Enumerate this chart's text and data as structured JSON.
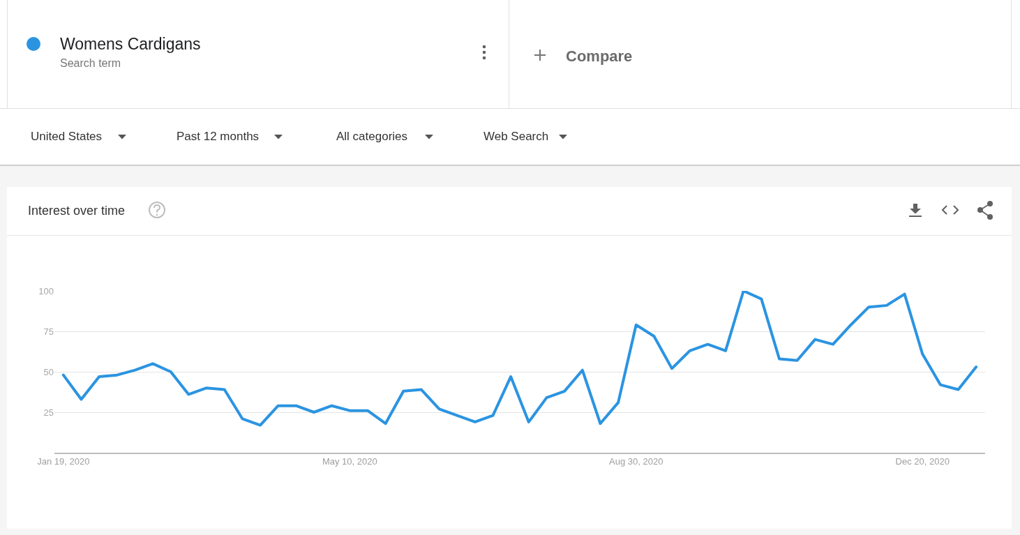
{
  "chart_data": {
    "type": "line",
    "title": "Interest over time",
    "annotations": [
      "Search term",
      "Compare",
      "United States",
      "Past 12 months",
      "All categories",
      "Web Search"
    ],
    "x": [
      "2020-01-19",
      "2020-01-26",
      "2020-02-02",
      "2020-02-09",
      "2020-02-16",
      "2020-02-23",
      "2020-03-01",
      "2020-03-08",
      "2020-03-15",
      "2020-03-22",
      "2020-03-29",
      "2020-04-05",
      "2020-04-12",
      "2020-04-19",
      "2020-04-26",
      "2020-05-03",
      "2020-05-10",
      "2020-05-17",
      "2020-05-24",
      "2020-05-31",
      "2020-06-07",
      "2020-06-14",
      "2020-06-21",
      "2020-06-28",
      "2020-07-05",
      "2020-07-12",
      "2020-07-19",
      "2020-07-26",
      "2020-08-02",
      "2020-08-09",
      "2020-08-16",
      "2020-08-23",
      "2020-08-30",
      "2020-09-06",
      "2020-09-13",
      "2020-09-20",
      "2020-09-27",
      "2020-10-04",
      "2020-10-11",
      "2020-10-18",
      "2020-10-25",
      "2020-11-01",
      "2020-11-08",
      "2020-11-15",
      "2020-11-22",
      "2020-11-29",
      "2020-12-06",
      "2020-12-13",
      "2020-12-20",
      "2020-12-27",
      "2021-01-03",
      "2021-01-10"
    ],
    "series": [
      {
        "name": "Womens Cardigans",
        "color": "#2b94e1",
        "values": [
          48,
          33,
          47,
          48,
          51,
          55,
          50,
          36,
          40,
          39,
          21,
          17,
          29,
          29,
          25,
          29,
          26,
          26,
          18,
          38,
          39,
          27,
          23,
          19,
          23,
          47,
          19,
          34,
          38,
          51,
          18,
          31,
          79,
          72,
          52,
          63,
          67,
          63,
          100,
          95,
          58,
          57,
          70,
          67,
          79,
          90,
          91,
          98,
          61,
          42,
          39,
          53
        ]
      }
    ],
    "xlim": [
      "2020-01-15T12:00",
      "2021-01-13T12:00"
    ],
    "xticks": [
      {
        "value": "2020-01-19",
        "label": "Jan 19, 2020"
      },
      {
        "value": "2020-05-10",
        "label": "May 10, 2020"
      },
      {
        "value": "2020-08-30",
        "label": "Aug 30, 2020"
      },
      {
        "value": "2020-12-20",
        "label": "Dec 20, 2020"
      }
    ],
    "ylim": [
      0,
      100
    ],
    "yticks": [
      25,
      50,
      75,
      100
    ],
    "grid": "y",
    "legend": "top left",
    "line_style": "solid"
  }
}
